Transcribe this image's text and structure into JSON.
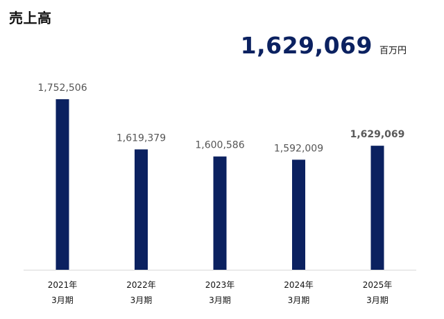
{
  "title": "売上高",
  "headline": {
    "value": "1,629,069",
    "unit": "百万円"
  },
  "colors": {
    "bar": "#0b2160",
    "axis": "#d9d9d9",
    "label": "#555555"
  },
  "chart_data": {
    "type": "bar",
    "categories": [
      [
        "2021年",
        "3月期"
      ],
      [
        "2022年",
        "3月期"
      ],
      [
        "2023年",
        "3月期"
      ],
      [
        "2024年",
        "3月期"
      ],
      [
        "2025年",
        "3月期"
      ]
    ],
    "values": [
      1752506,
      1619379,
      1600586,
      1592009,
      1629069
    ],
    "value_labels": [
      "1,752,506",
      "1,619,379",
      "1,600,586",
      "1,592,009",
      "1,629,069"
    ],
    "highlight_index": 4,
    "ylim": [
      1300000,
      1760000
    ],
    "grid": false,
    "legend": "none"
  }
}
